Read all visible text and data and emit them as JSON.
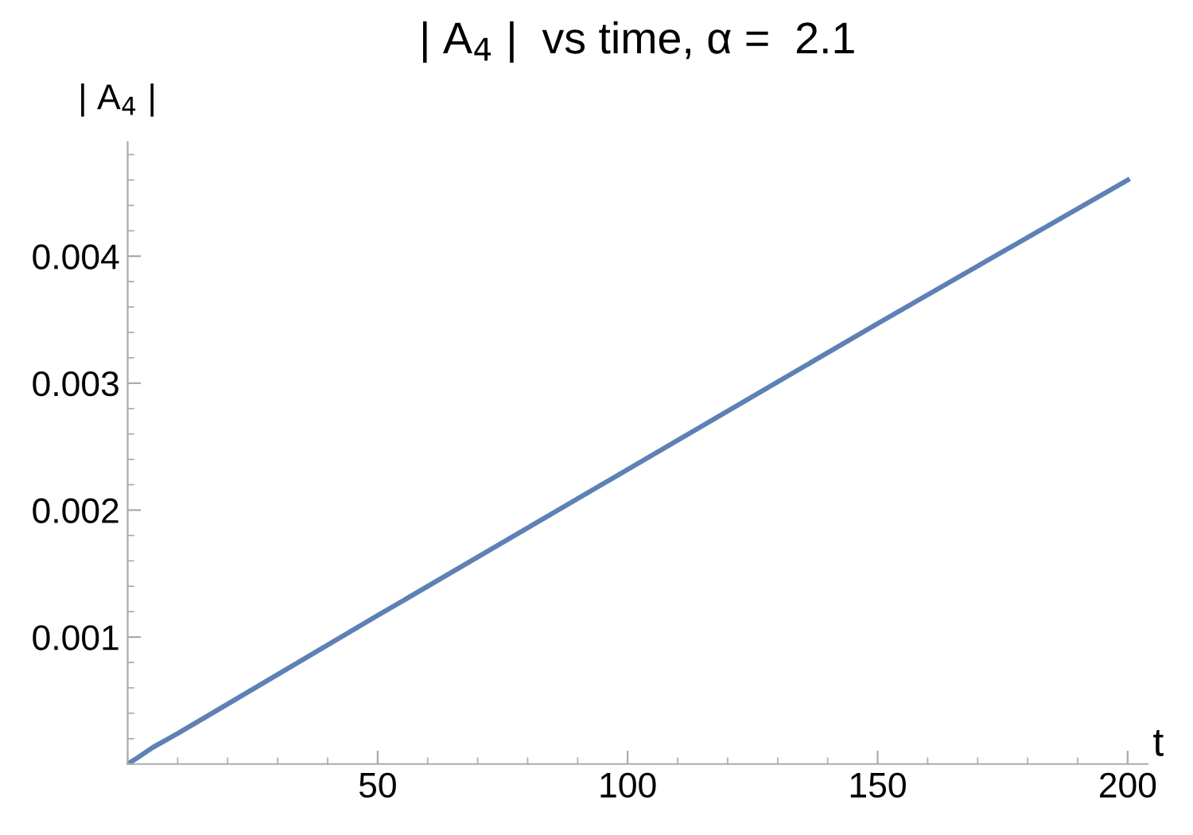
{
  "chart_data": {
    "type": "line",
    "title": "| A$_{4}$ |  vs time, α =  2.1",
    "xlabel": "t",
    "ylabel": "| A$_{4}$ |",
    "x": [
      0,
      2,
      5,
      10,
      50,
      100,
      150,
      200
    ],
    "series": [
      {
        "color": "#5e81b5",
        "values": [
          0,
          5e-05,
          0.00013,
          0.00024,
          0.00117,
          0.00232,
          0.00347,
          0.0046
        ]
      }
    ],
    "xlim": [
      0,
      204
    ],
    "ylim": [
      0,
      0.0049
    ],
    "xticks": [
      50,
      100,
      150,
      200
    ],
    "yticks": [
      0.001,
      0.002,
      0.003,
      0.004
    ],
    "grid": false,
    "marker": "none",
    "line_style": "solid"
  }
}
